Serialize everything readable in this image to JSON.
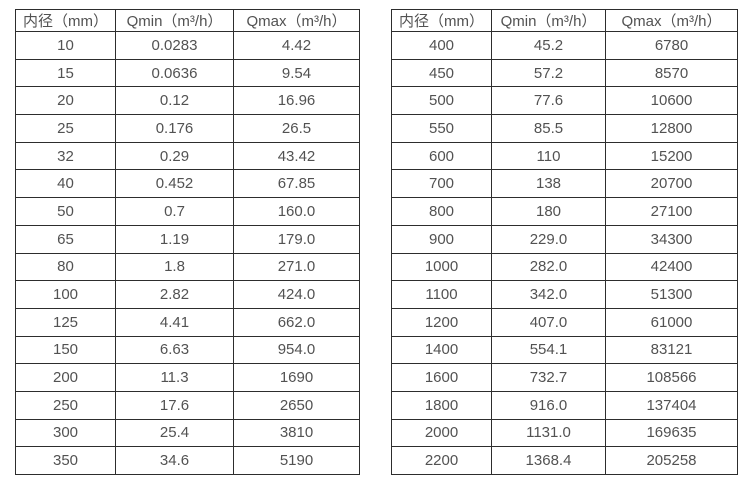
{
  "colors": {
    "background": "#ffffff",
    "border": "#2d2d2d",
    "text": "#525252"
  },
  "tables": [
    {
      "name": "flow-spec-table-small-diameters",
      "headers": [
        "内径（mm）",
        "Qmin（m³/h）",
        "Qmax（m³/h）"
      ],
      "rows": [
        [
          "10",
          "0.0283",
          "4.42"
        ],
        [
          "15",
          "0.0636",
          "9.54"
        ],
        [
          "20",
          "0.12",
          "16.96"
        ],
        [
          "25",
          "0.176",
          "26.5"
        ],
        [
          "32",
          "0.29",
          "43.42"
        ],
        [
          "40",
          "0.452",
          "67.85"
        ],
        [
          "50",
          "0.7",
          "160.0"
        ],
        [
          "65",
          "1.19",
          "179.0"
        ],
        [
          "80",
          "1.8",
          "271.0"
        ],
        [
          "100",
          "2.82",
          "424.0"
        ],
        [
          "125",
          "4.41",
          "662.0"
        ],
        [
          "150",
          "6.63",
          "954.0"
        ],
        [
          "200",
          "11.3",
          "1690"
        ],
        [
          "250",
          "17.6",
          "2650"
        ],
        [
          "300",
          "25.4",
          "3810"
        ],
        [
          "350",
          "34.6",
          "5190"
        ]
      ]
    },
    {
      "name": "flow-spec-table-large-diameters",
      "headers": [
        "内径（mm）",
        "Qmin（m³/h）",
        "Qmax（m³/h）"
      ],
      "rows": [
        [
          "400",
          "45.2",
          "6780"
        ],
        [
          "450",
          "57.2",
          "8570"
        ],
        [
          "500",
          "77.6",
          "10600"
        ],
        [
          "550",
          "85.5",
          "12800"
        ],
        [
          "600",
          "110",
          "15200"
        ],
        [
          "700",
          "138",
          "20700"
        ],
        [
          "800",
          "180",
          "27100"
        ],
        [
          "900",
          "229.0",
          "34300"
        ],
        [
          "1000",
          "282.0",
          "42400"
        ],
        [
          "1100",
          "342.0",
          "51300"
        ],
        [
          "1200",
          "407.0",
          "61000"
        ],
        [
          "1400",
          "554.1",
          "83121"
        ],
        [
          "1600",
          "732.7",
          "108566"
        ],
        [
          "1800",
          "916.0",
          "137404"
        ],
        [
          "2000",
          "1131.0",
          "169635"
        ],
        [
          "2200",
          "1368.4",
          "205258"
        ]
      ]
    }
  ]
}
